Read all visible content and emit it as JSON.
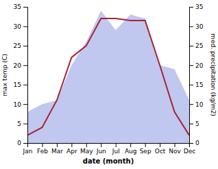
{
  "chart_data": {
    "type": "line",
    "categories": [
      "Jan",
      "Feb",
      "Mar",
      "Apr",
      "May",
      "Jun",
      "Jul",
      "Aug",
      "Sep",
      "Oct",
      "Nov",
      "Dec"
    ],
    "series": [
      {
        "type": "area",
        "axis": "y2",
        "color": "#c0c8f0",
        "values": [
          8,
          10,
          11,
          20,
          26,
          34,
          29,
          33,
          32,
          20,
          19,
          11
        ]
      },
      {
        "type": "line",
        "color": "#aa2030",
        "values": [
          2,
          4,
          11,
          22,
          25,
          32,
          32,
          31.5,
          31.5,
          20,
          8,
          2
        ]
      }
    ],
    "xlabel": "date (month)",
    "ylabel": "max temp (C)",
    "y2label": "med. precipitation (kg/m2)",
    "ylim": [
      0,
      35
    ],
    "yticks": [
      0,
      5,
      10,
      15,
      20,
      25,
      30,
      35
    ],
    "y2lim": [
      0,
      35
    ],
    "y2ticks": [
      0,
      5,
      10,
      15,
      20,
      25,
      30,
      35
    ],
    "grid": false
  }
}
